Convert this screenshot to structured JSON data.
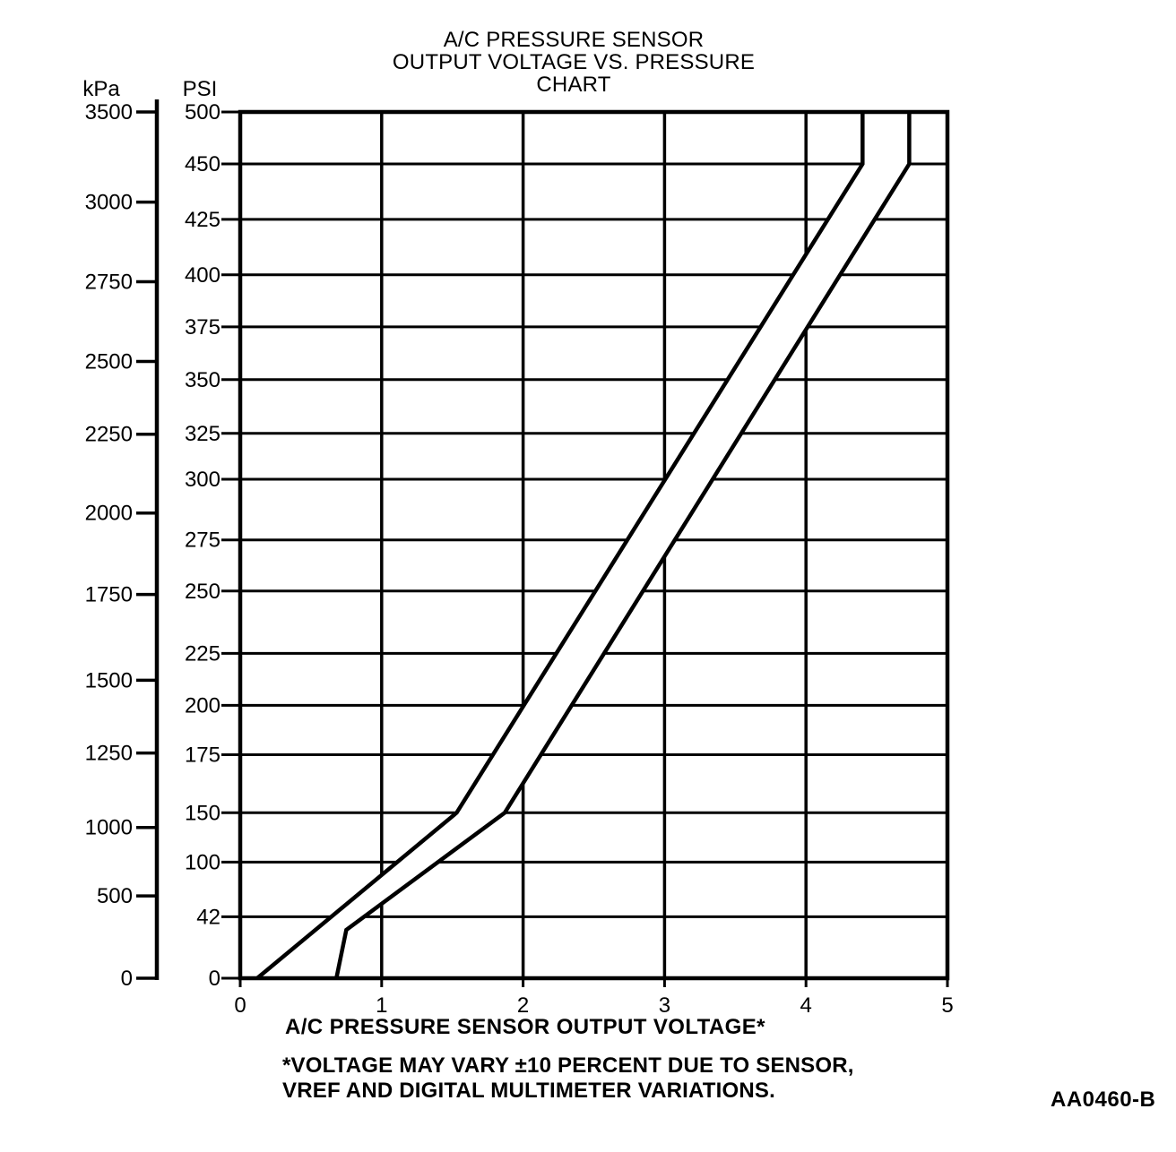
{
  "page": {
    "figure_code": "AA0460-B"
  },
  "chart_data": {
    "type": "line",
    "title": "A/C PRESSURE SENSOR\nOUTPUT VOLTAGE VS. PRESSURE\nCHART",
    "xlabel": "A/C PRESSURE SENSOR OUTPUT VOLTAGE*",
    "footnote": "*VOLTAGE MAY VARY ±10 PERCENT DUE TO SENSOR,\nVREF AND DIGITAL MULTIMETER VARIATIONS.",
    "kpa_unit_label": "kPa",
    "psi_unit_label": "PSI",
    "line_color": "#000000",
    "band_fill": "#ffffff",
    "grid": true,
    "x_range": [
      0,
      5
    ],
    "x_ticks": [
      0,
      1,
      2,
      3,
      4,
      5
    ],
    "psi_axis_note": "non-linear tick spacing",
    "psi_ticks": [
      {
        "value": 500,
        "frac": 0.0
      },
      {
        "value": 450,
        "frac": 0.06
      },
      {
        "value": 425,
        "frac": 0.124
      },
      {
        "value": 400,
        "frac": 0.188
      },
      {
        "value": 375,
        "frac": 0.248
      },
      {
        "value": 350,
        "frac": 0.309
      },
      {
        "value": 325,
        "frac": 0.371
      },
      {
        "value": 300,
        "frac": 0.424
      },
      {
        "value": 275,
        "frac": 0.494
      },
      {
        "value": 250,
        "frac": 0.553
      },
      {
        "value": 225,
        "frac": 0.625
      },
      {
        "value": 200,
        "frac": 0.685
      },
      {
        "value": 175,
        "frac": 0.742
      },
      {
        "value": 150,
        "frac": 0.809
      },
      {
        "value": 100,
        "frac": 0.866
      },
      {
        "value": 42,
        "frac": 0.929
      },
      {
        "value": 0,
        "frac": 1.0
      }
    ],
    "kpa_ticks": [
      {
        "value": 3500,
        "frac": 0.0
      },
      {
        "value": 3000,
        "frac": 0.104
      },
      {
        "value": 2750,
        "frac": 0.196
      },
      {
        "value": 2500,
        "frac": 0.288
      },
      {
        "value": 2250,
        "frac": 0.372
      },
      {
        "value": 2000,
        "frac": 0.463
      },
      {
        "value": 1750,
        "frac": 0.557
      },
      {
        "value": 1500,
        "frac": 0.656
      },
      {
        "value": 1250,
        "frac": 0.74
      },
      {
        "value": 1000,
        "frac": 0.826
      },
      {
        "value": 500,
        "frac": 0.905
      },
      {
        "value": 0,
        "frac": 1.0
      }
    ],
    "series": [
      {
        "name": "upper-pressure-limit",
        "points_v_psi": [
          [
            0.12,
            0
          ],
          [
            1.53,
            150
          ],
          [
            4.4,
            450
          ],
          [
            4.4,
            500
          ]
        ]
      },
      {
        "name": "lower-pressure-limit",
        "points_v_psi": [
          [
            0.68,
            0
          ],
          [
            0.75,
            33
          ],
          [
            1.87,
            150
          ],
          [
            4.73,
            450
          ],
          [
            4.73,
            500
          ]
        ]
      }
    ]
  }
}
